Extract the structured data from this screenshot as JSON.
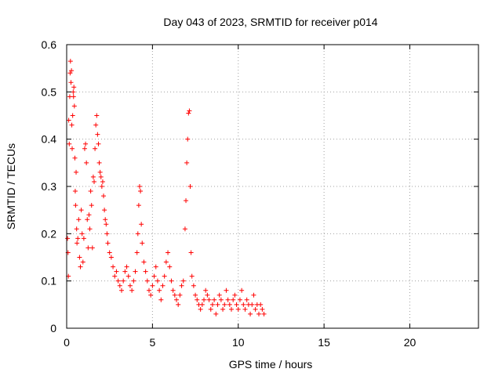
{
  "chart_data": {
    "type": "scatter",
    "title": "Day 043 of 2023, SRMTID for receiver p014",
    "xlabel": "GPS time / hours",
    "ylabel": "SRMTID / TECUs",
    "xlim": [
      0,
      24
    ],
    "ylim": [
      0,
      0.6
    ],
    "xticks": [
      0,
      5,
      10,
      15,
      20
    ],
    "xtick_labels": [
      "0",
      "5",
      "10",
      "15",
      "20"
    ],
    "yticks": [
      0,
      0.1,
      0.2,
      0.3,
      0.4,
      0.5,
      0.6
    ],
    "ytick_labels": [
      "0",
      "0.1",
      "0.2",
      "0.3",
      "0.4",
      "0.5",
      "0.6"
    ],
    "grid": true,
    "marker": "+",
    "color": "#ff0000",
    "series": [
      {
        "name": "SRMTID",
        "points": [
          [
            0.05,
            0.19
          ],
          [
            0.08,
            0.16
          ],
          [
            0.1,
            0.11
          ],
          [
            0.12,
            0.44
          ],
          [
            0.15,
            0.39
          ],
          [
            0.18,
            0.49
          ],
          [
            0.2,
            0.54
          ],
          [
            0.22,
            0.565
          ],
          [
            0.25,
            0.52
          ],
          [
            0.28,
            0.545
          ],
          [
            0.3,
            0.43
          ],
          [
            0.32,
            0.38
          ],
          [
            0.35,
            0.45
          ],
          [
            0.38,
            0.5
          ],
          [
            0.4,
            0.49
          ],
          [
            0.42,
            0.51
          ],
          [
            0.45,
            0.47
          ],
          [
            0.48,
            0.36
          ],
          [
            0.5,
            0.29
          ],
          [
            0.52,
            0.26
          ],
          [
            0.55,
            0.33
          ],
          [
            0.58,
            0.21
          ],
          [
            0.6,
            0.18
          ],
          [
            0.65,
            0.19
          ],
          [
            0.7,
            0.23
          ],
          [
            0.75,
            0.15
          ],
          [
            0.8,
            0.13
          ],
          [
            0.85,
            0.25
          ],
          [
            0.9,
            0.2
          ],
          [
            0.95,
            0.14
          ],
          [
            1.0,
            0.19
          ],
          [
            1.05,
            0.38
          ],
          [
            1.1,
            0.39
          ],
          [
            1.15,
            0.35
          ],
          [
            1.2,
            0.23
          ],
          [
            1.25,
            0.17
          ],
          [
            1.3,
            0.24
          ],
          [
            1.35,
            0.21
          ],
          [
            1.4,
            0.29
          ],
          [
            1.45,
            0.26
          ],
          [
            1.5,
            0.17
          ],
          [
            1.55,
            0.32
          ],
          [
            1.6,
            0.31
          ],
          [
            1.65,
            0.38
          ],
          [
            1.7,
            0.43
          ],
          [
            1.75,
            0.45
          ],
          [
            1.8,
            0.41
          ],
          [
            1.85,
            0.39
          ],
          [
            1.9,
            0.35
          ],
          [
            1.95,
            0.33
          ],
          [
            2.0,
            0.32
          ],
          [
            2.05,
            0.3
          ],
          [
            2.1,
            0.31
          ],
          [
            2.15,
            0.28
          ],
          [
            2.2,
            0.25
          ],
          [
            2.25,
            0.23
          ],
          [
            2.3,
            0.22
          ],
          [
            2.35,
            0.2
          ],
          [
            2.4,
            0.18
          ],
          [
            2.5,
            0.16
          ],
          [
            2.6,
            0.15
          ],
          [
            2.7,
            0.13
          ],
          [
            2.8,
            0.11
          ],
          [
            2.9,
            0.12
          ],
          [
            3.0,
            0.1
          ],
          [
            3.1,
            0.09
          ],
          [
            3.2,
            0.08
          ],
          [
            3.3,
            0.1
          ],
          [
            3.4,
            0.12
          ],
          [
            3.5,
            0.13
          ],
          [
            3.6,
            0.11
          ],
          [
            3.7,
            0.09
          ],
          [
            3.8,
            0.08
          ],
          [
            3.9,
            0.1
          ],
          [
            4.0,
            0.12
          ],
          [
            4.1,
            0.16
          ],
          [
            4.15,
            0.2
          ],
          [
            4.2,
            0.26
          ],
          [
            4.25,
            0.3
          ],
          [
            4.3,
            0.29
          ],
          [
            4.35,
            0.22
          ],
          [
            4.4,
            0.18
          ],
          [
            4.5,
            0.14
          ],
          [
            4.6,
            0.12
          ],
          [
            4.7,
            0.1
          ],
          [
            4.8,
            0.08
          ],
          [
            4.9,
            0.07
          ],
          [
            5.0,
            0.09
          ],
          [
            5.1,
            0.11
          ],
          [
            5.2,
            0.13
          ],
          [
            5.3,
            0.1
          ],
          [
            5.4,
            0.08
          ],
          [
            5.5,
            0.06
          ],
          [
            5.6,
            0.09
          ],
          [
            5.7,
            0.11
          ],
          [
            5.8,
            0.14
          ],
          [
            5.9,
            0.16
          ],
          [
            6.0,
            0.13
          ],
          [
            6.1,
            0.1
          ],
          [
            6.2,
            0.08
          ],
          [
            6.3,
            0.07
          ],
          [
            6.4,
            0.06
          ],
          [
            6.5,
            0.05
          ],
          [
            6.6,
            0.07
          ],
          [
            6.7,
            0.09
          ],
          [
            6.8,
            0.1
          ],
          [
            6.9,
            0.21
          ],
          [
            6.95,
            0.27
          ],
          [
            7.0,
            0.35
          ],
          [
            7.05,
            0.4
          ],
          [
            7.1,
            0.455
          ],
          [
            7.15,
            0.46
          ],
          [
            7.2,
            0.3
          ],
          [
            7.25,
            0.16
          ],
          [
            7.3,
            0.11
          ],
          [
            7.4,
            0.09
          ],
          [
            7.5,
            0.07
          ],
          [
            7.6,
            0.06
          ],
          [
            7.7,
            0.05
          ],
          [
            7.8,
            0.04
          ],
          [
            7.9,
            0.05
          ],
          [
            8.0,
            0.06
          ],
          [
            8.1,
            0.08
          ],
          [
            8.2,
            0.07
          ],
          [
            8.3,
            0.06
          ],
          [
            8.4,
            0.04
          ],
          [
            8.5,
            0.05
          ],
          [
            8.6,
            0.06
          ],
          [
            8.7,
            0.03
          ],
          [
            8.8,
            0.05
          ],
          [
            8.9,
            0.07
          ],
          [
            9.0,
            0.06
          ],
          [
            9.1,
            0.04
          ],
          [
            9.2,
            0.05
          ],
          [
            9.3,
            0.08
          ],
          [
            9.4,
            0.06
          ],
          [
            9.5,
            0.05
          ],
          [
            9.6,
            0.04
          ],
          [
            9.7,
            0.06
          ],
          [
            9.8,
            0.07
          ],
          [
            9.9,
            0.05
          ],
          [
            10.0,
            0.04
          ],
          [
            10.1,
            0.06
          ],
          [
            10.2,
            0.08
          ],
          [
            10.3,
            0.05
          ],
          [
            10.4,
            0.04
          ],
          [
            10.5,
            0.06
          ],
          [
            10.6,
            0.05
          ],
          [
            10.7,
            0.03
          ],
          [
            10.8,
            0.05
          ],
          [
            10.9,
            0.07
          ],
          [
            11.0,
            0.04
          ],
          [
            11.1,
            0.05
          ],
          [
            11.2,
            0.03
          ],
          [
            11.3,
            0.05
          ],
          [
            11.4,
            0.04
          ],
          [
            11.5,
            0.03
          ]
        ]
      }
    ]
  }
}
